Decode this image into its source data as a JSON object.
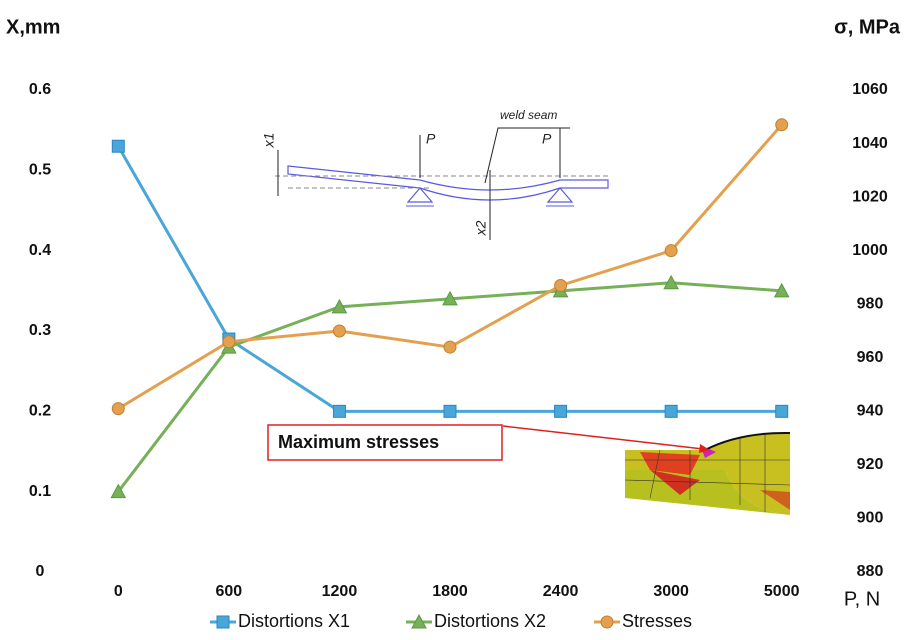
{
  "chart_data": {
    "type": "line",
    "y_label": "X,mm",
    "y2_label": "σ, MPa",
    "x_label": "P, N",
    "annotation": "Maximum stresses",
    "inset_labels": [
      "x1",
      "P",
      "weld seam",
      "P",
      "x2"
    ],
    "categories": [
      "0",
      "600",
      "1200",
      "1800",
      "2400",
      "3000",
      "5000"
    ],
    "series": [
      {
        "name": "Distortions X1",
        "color": "#49a6d9",
        "marker": "square",
        "values": [
          0.53,
          0.29,
          0.2,
          0.2,
          0.2,
          0.2,
          0.2
        ]
      },
      {
        "name": "Distortions X2",
        "color": "#76b058",
        "marker": "triangle",
        "values": [
          0.1,
          0.28,
          0.33,
          0.34,
          0.35,
          0.36,
          0.35
        ]
      },
      {
        "name": "Stresses",
        "color": "#e3a04f",
        "marker": "circle",
        "axis": "y2",
        "values": [
          941,
          966,
          970,
          964,
          987,
          1000,
          1047
        ]
      }
    ],
    "ylim": [
      0,
      0.6
    ],
    "yticks": [
      0,
      0.1,
      0.2,
      0.3,
      0.4,
      0.5,
      0.6
    ],
    "y2lim": [
      880,
      1060
    ],
    "y2ticks": [
      880,
      900,
      920,
      940,
      960,
      980,
      1000,
      1020,
      1040,
      1060
    ],
    "grid": false
  }
}
